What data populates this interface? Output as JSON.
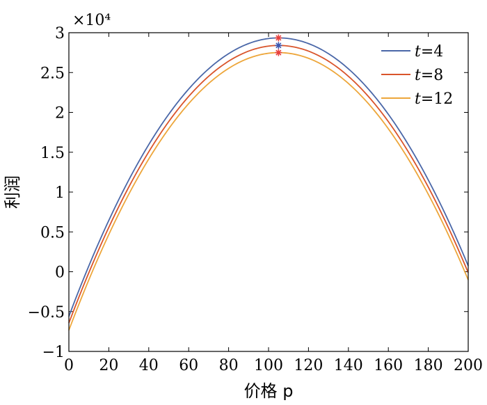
{
  "chart_data": {
    "type": "line",
    "xlabel": "价格 p",
    "ylabel": "利润",
    "y_multiplier": "×10⁴",
    "xlim": [
      0,
      200
    ],
    "ylim": [
      -1,
      3
    ],
    "x_ticks": [
      0,
      20,
      40,
      60,
      80,
      100,
      120,
      140,
      160,
      180,
      200
    ],
    "y_ticks": [
      -1,
      -0.5,
      0,
      0.5,
      1,
      1.5,
      2,
      2.5,
      3
    ],
    "y_tick_labels": [
      "−1",
      "−0.5",
      "0",
      "0.5",
      "1",
      "1.5",
      "2",
      "2.5",
      "3"
    ],
    "grid": false,
    "legend_position": "top-right",
    "series": [
      {
        "name": "t = 4",
        "color": "#4A67A8",
        "peak": {
          "x": 105,
          "y": 2.935
        },
        "x": [
          0,
          20,
          40,
          60,
          80,
          105,
          130,
          150,
          170,
          190,
          200
        ],
        "y": [
          -0.36,
          0.58,
          1.39,
          2.06,
          2.59,
          2.935,
          2.59,
          2.06,
          1.39,
          0.58,
          0.25
        ]
      },
      {
        "name": "t = 8",
        "color": "#D9542B",
        "peak": {
          "x": 105,
          "y": 2.84
        },
        "x": [
          0,
          20,
          40,
          60,
          80,
          105,
          130,
          150,
          170,
          190,
          200
        ],
        "y": [
          -0.44,
          0.5,
          1.31,
          1.98,
          2.51,
          2.84,
          2.51,
          1.98,
          1.31,
          0.5,
          0.13
        ]
      },
      {
        "name": "t = 12",
        "color": "#EDA63A",
        "peak": {
          "x": 105,
          "y": 2.75
        },
        "x": [
          0,
          20,
          40,
          60,
          80,
          105,
          130,
          150,
          170,
          190,
          200
        ],
        "y": [
          -0.53,
          0.41,
          1.22,
          1.89,
          2.42,
          2.75,
          2.42,
          1.89,
          1.22,
          0.41,
          0.04
        ]
      }
    ],
    "peak_markers": [
      {
        "series": "t = 4",
        "color": "#E8403C"
      },
      {
        "series": "t = 8",
        "color": "#3A56B0"
      },
      {
        "series": "t = 12",
        "color": "#E8403C"
      }
    ]
  }
}
